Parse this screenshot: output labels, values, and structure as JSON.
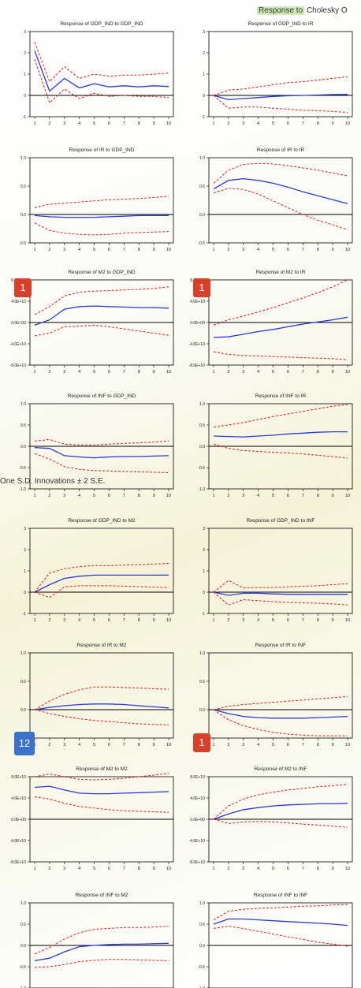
{
  "header": {
    "highlight": "Response to",
    "rest": "Cholesky O",
    "subtitle": "One S.D. Innovations ± 2 S.E."
  },
  "badges": [
    {
      "label": "1",
      "color": "#d8402a"
    },
    {
      "label": "1",
      "color": "#d8402a"
    },
    {
      "label": "12",
      "color": "#3a73c9"
    },
    {
      "label": "1",
      "color": "#d8402a"
    }
  ],
  "colors": {
    "response": "#2a3ad8",
    "bands": "#e02020",
    "zero": "#000000"
  },
  "chart_data": [
    {
      "type": "line",
      "title": "Response of GDP_IND to GDP_IND",
      "x": [
        1,
        2,
        3,
        4,
        5,
        6,
        7,
        8,
        9,
        10
      ],
      "ylim": [
        -1,
        3
      ],
      "yticks": [
        "-1",
        "0",
        "1",
        "2",
        "3"
      ],
      "series": [
        {
          "values": [
            2.1,
            0.2,
            0.8,
            0.35,
            0.55,
            0.4,
            0.45,
            0.4,
            0.45,
            0.42
          ]
        },
        {
          "values": [
            2.5,
            0.65,
            1.35,
            0.8,
            1.0,
            0.9,
            0.95,
            0.95,
            1.0,
            1.05
          ]
        },
        {
          "values": [
            1.7,
            -0.35,
            0.3,
            -0.15,
            0.1,
            -0.05,
            0.0,
            -0.05,
            -0.05,
            -0.1
          ]
        }
      ]
    },
    {
      "type": "line",
      "title": "Response of GDP_IND to IR",
      "x": [
        1,
        2,
        3,
        4,
        5,
        6,
        7,
        8,
        9,
        10
      ],
      "ylim": [
        -1,
        3
      ],
      "yticks": [
        "-1",
        "0",
        "1",
        "2",
        "3"
      ],
      "series": [
        {
          "values": [
            0.0,
            -0.2,
            -0.15,
            -0.1,
            -0.05,
            -0.02,
            0.0,
            0.02,
            0.04,
            0.05
          ]
        },
        {
          "values": [
            0.0,
            0.25,
            0.3,
            0.4,
            0.5,
            0.6,
            0.65,
            0.72,
            0.8,
            0.88
          ]
        },
        {
          "values": [
            0.0,
            -0.6,
            -0.55,
            -0.55,
            -0.6,
            -0.65,
            -0.7,
            -0.72,
            -0.75,
            -0.8
          ]
        }
      ]
    },
    {
      "type": "line",
      "title": "Response of IR to GDP_IND",
      "x": [
        1,
        2,
        3,
        4,
        5,
        6,
        7,
        8,
        9,
        10
      ],
      "ylim": [
        -0.5,
        1.0
      ],
      "yticks": [
        "-0.5",
        "0.0",
        "0.5",
        "1.0"
      ],
      "series": [
        {
          "values": [
            -0.02,
            -0.04,
            -0.05,
            -0.05,
            -0.05,
            -0.04,
            -0.03,
            -0.02,
            -0.02,
            -0.02
          ]
        },
        {
          "values": [
            0.12,
            0.18,
            0.2,
            0.22,
            0.24,
            0.26,
            0.27,
            0.28,
            0.3,
            0.32
          ]
        },
        {
          "values": [
            -0.15,
            -0.28,
            -0.33,
            -0.35,
            -0.36,
            -0.35,
            -0.33,
            -0.32,
            -0.31,
            -0.3
          ]
        }
      ]
    },
    {
      "type": "line",
      "title": "Response of IR to IR",
      "x": [
        1,
        2,
        3,
        4,
        5,
        6,
        7,
        8,
        9,
        10
      ],
      "ylim": [
        -0.5,
        1.0
      ],
      "yticks": [
        "-0.5",
        "0.0",
        "0.5",
        "1.0"
      ],
      "series": [
        {
          "values": [
            0.45,
            0.6,
            0.63,
            0.6,
            0.55,
            0.48,
            0.4,
            0.33,
            0.26,
            0.19
          ]
        },
        {
          "values": [
            0.55,
            0.78,
            0.88,
            0.9,
            0.89,
            0.86,
            0.82,
            0.78,
            0.73,
            0.68
          ]
        },
        {
          "values": [
            0.38,
            0.46,
            0.44,
            0.36,
            0.24,
            0.12,
            0.0,
            -0.1,
            -0.18,
            -0.27
          ]
        }
      ]
    },
    {
      "type": "line",
      "title": "Response of M2 to GDP_IND",
      "x": [
        1,
        2,
        3,
        4,
        5,
        6,
        7,
        8,
        9,
        10
      ],
      "ylim": [
        -80000000000,
        80000000000
      ],
      "yticks": [
        "-8.0E+10",
        "-4.0E+10",
        "0.0E+00",
        "4.0E+10",
        "8.0E+10"
      ],
      "series": [
        {
          "values": [
            -5000000000,
            5000000000,
            25000000000,
            30000000000,
            31000000000,
            30000000000,
            29000000000,
            28000000000,
            28000000000,
            27000000000
          ]
        },
        {
          "values": [
            15000000000,
            30000000000,
            50000000000,
            57000000000,
            59000000000,
            60000000000,
            61000000000,
            62000000000,
            64000000000,
            67000000000
          ]
        },
        {
          "values": [
            -25000000000,
            -20000000000,
            -8000000000,
            -7000000000,
            -5000000000,
            -8000000000,
            -12000000000,
            -16000000000,
            -20000000000,
            -24000000000
          ]
        }
      ]
    },
    {
      "type": "line",
      "title": "Response of M2 to IR",
      "x": [
        1,
        2,
        3,
        4,
        5,
        6,
        7,
        8,
        9,
        10
      ],
      "ylim": [
        -80000000000,
        80000000000
      ],
      "yticks": [
        "-8.0E+10",
        "-4.0E+10",
        "0.0E+00",
        "4.0E+10",
        "8.0E+10"
      ],
      "series": [
        {
          "values": [
            -28000000000,
            -27000000000,
            -22000000000,
            -17000000000,
            -13000000000,
            -8000000000,
            -3000000000,
            1000000000,
            5000000000,
            10000000000
          ]
        },
        {
          "values": [
            -5000000000,
            5000000000,
            12000000000,
            20000000000,
            28000000000,
            37000000000,
            46000000000,
            56000000000,
            67000000000,
            80000000000
          ]
        },
        {
          "values": [
            -55000000000,
            -60000000000,
            -62000000000,
            -63000000000,
            -64000000000,
            -65000000000,
            -66000000000,
            -67000000000,
            -68000000000,
            -70000000000
          ]
        }
      ]
    },
    {
      "type": "line",
      "title": "Response of INF to GDP_IND",
      "x": [
        1,
        2,
        3,
        4,
        5,
        6,
        7,
        8,
        9,
        10
      ],
      "ylim": [
        -1.0,
        1.0
      ],
      "yticks": [
        "-1.0",
        "-0.5",
        "0.0",
        "0.5",
        "1.0"
      ],
      "series": [
        {
          "values": [
            -0.03,
            -0.05,
            -0.22,
            -0.25,
            -0.27,
            -0.25,
            -0.24,
            -0.24,
            -0.23,
            -0.22
          ]
        },
        {
          "values": [
            0.12,
            0.16,
            0.05,
            0.03,
            0.03,
            0.05,
            0.07,
            0.08,
            0.1,
            0.12
          ]
        },
        {
          "values": [
            -0.17,
            -0.3,
            -0.48,
            -0.54,
            -0.57,
            -0.58,
            -0.59,
            -0.6,
            -0.61,
            -0.62
          ]
        }
      ]
    },
    {
      "type": "line",
      "title": "Response of INF to IR",
      "x": [
        1,
        2,
        3,
        4,
        5,
        6,
        7,
        8,
        9,
        10
      ],
      "ylim": [
        -1.0,
        1.0
      ],
      "yticks": [
        "-1.0",
        "-0.5",
        "0.0",
        "0.5",
        "1.0"
      ],
      "series": [
        {
          "values": [
            0.24,
            0.23,
            0.22,
            0.24,
            0.26,
            0.29,
            0.31,
            0.33,
            0.34,
            0.34
          ]
        },
        {
          "values": [
            0.45,
            0.5,
            0.56,
            0.63,
            0.7,
            0.76,
            0.82,
            0.88,
            0.94,
            0.98
          ]
        },
        {
          "values": [
            0.05,
            -0.05,
            -0.1,
            -0.12,
            -0.14,
            -0.16,
            -0.18,
            -0.21,
            -0.24,
            -0.28
          ]
        }
      ]
    },
    {
      "type": "line",
      "title": "Response of GDP_IND to M2",
      "x": [
        1,
        2,
        3,
        4,
        5,
        6,
        7,
        8,
        9,
        10
      ],
      "ylim": [
        -1,
        3
      ],
      "yticks": [
        "-1",
        "0",
        "1",
        "2",
        "3"
      ],
      "series": [
        {
          "values": [
            0.0,
            0.35,
            0.65,
            0.75,
            0.8,
            0.8,
            0.8,
            0.8,
            0.8,
            0.8
          ]
        },
        {
          "values": [
            0.0,
            0.9,
            1.1,
            1.2,
            1.25,
            1.25,
            1.27,
            1.3,
            1.32,
            1.35
          ]
        },
        {
          "values": [
            0.0,
            -0.25,
            0.25,
            0.3,
            0.3,
            0.3,
            0.28,
            0.26,
            0.24,
            0.22
          ]
        }
      ]
    },
    {
      "type": "line",
      "title": "Response of GDP_IND to INF",
      "x": [
        1,
        2,
        3,
        4,
        5,
        6,
        7,
        8,
        9,
        10
      ],
      "ylim": [
        -1,
        3
      ],
      "yticks": [
        "-1",
        "0",
        "1",
        "2",
        "3"
      ],
      "series": [
        {
          "values": [
            0.0,
            -0.15,
            -0.05,
            -0.05,
            -0.08,
            -0.1,
            -0.1,
            -0.1,
            -0.1,
            -0.1
          ]
        },
        {
          "values": [
            0.0,
            0.55,
            0.2,
            0.22,
            0.22,
            0.25,
            0.28,
            0.3,
            0.35,
            0.4
          ]
        },
        {
          "values": [
            0.0,
            -0.6,
            -0.35,
            -0.4,
            -0.45,
            -0.48,
            -0.5,
            -0.52,
            -0.55,
            -0.6
          ]
        }
      ]
    },
    {
      "type": "line",
      "title": "Response of IR to M2",
      "x": [
        1,
        2,
        3,
        4,
        5,
        6,
        7,
        8,
        9,
        10
      ],
      "ylim": [
        -0.5,
        1.0
      ],
      "yticks": [
        "-0.5",
        "0.0",
        "0.5",
        "1.0"
      ],
      "series": [
        {
          "values": [
            0.0,
            0.04,
            0.07,
            0.09,
            0.1,
            0.1,
            0.09,
            0.07,
            0.05,
            0.03
          ]
        },
        {
          "values": [
            0.0,
            0.15,
            0.27,
            0.35,
            0.4,
            0.4,
            0.39,
            0.38,
            0.37,
            0.36
          ]
        },
        {
          "values": [
            0.0,
            -0.07,
            -0.12,
            -0.16,
            -0.19,
            -0.21,
            -0.23,
            -0.25,
            -0.26,
            -0.27
          ]
        }
      ]
    },
    {
      "type": "line",
      "title": "Response of IR to INF",
      "x": [
        1,
        2,
        3,
        4,
        5,
        6,
        7,
        8,
        9,
        10
      ],
      "ylim": [
        -0.5,
        1.0
      ],
      "yticks": [
        "-0.5",
        "0.0",
        "0.5",
        "1.0"
      ],
      "series": [
        {
          "values": [
            0.0,
            -0.07,
            -0.12,
            -0.14,
            -0.15,
            -0.15,
            -0.15,
            -0.14,
            -0.13,
            -0.12
          ]
        },
        {
          "values": [
            0.0,
            0.06,
            0.09,
            0.11,
            0.13,
            0.15,
            0.17,
            0.19,
            0.21,
            0.23
          ]
        },
        {
          "values": [
            0.0,
            -0.18,
            -0.28,
            -0.35,
            -0.4,
            -0.43,
            -0.45,
            -0.46,
            -0.46,
            -0.46
          ]
        }
      ]
    },
    {
      "type": "line",
      "title": "Response of M2 to M2",
      "x": [
        1,
        2,
        3,
        4,
        5,
        6,
        7,
        8,
        9,
        10
      ],
      "ylim": [
        -80000000000,
        80000000000
      ],
      "yticks": [
        "-8.0E+10",
        "-4.0E+10",
        "0.0E+00",
        "4.0E+10",
        "8.0E+10"
      ],
      "series": [
        {
          "values": [
            60000000000,
            62000000000,
            55000000000,
            49000000000,
            48000000000,
            48000000000,
            49000000000,
            50000000000,
            51000000000,
            52000000000
          ]
        },
        {
          "values": [
            80000000000,
            85000000000,
            80000000000,
            75000000000,
            74000000000,
            75000000000,
            77000000000,
            80000000000,
            83000000000,
            86000000000
          ]
        },
        {
          "values": [
            42000000000,
            38000000000,
            30000000000,
            24000000000,
            21000000000,
            18000000000,
            16000000000,
            15000000000,
            14000000000,
            13000000000
          ]
        }
      ]
    },
    {
      "type": "line",
      "title": "Response of M2 to INF",
      "x": [
        1,
        2,
        3,
        4,
        5,
        6,
        7,
        8,
        9,
        10
      ],
      "ylim": [
        -80000000000,
        80000000000
      ],
      "yticks": [
        "-8.0E+10",
        "-4.0E+10",
        "0.0E+00",
        "4.0E+10",
        "8.0E+10"
      ],
      "series": [
        {
          "values": [
            0,
            10000000000,
            18000000000,
            22000000000,
            25000000000,
            27000000000,
            28000000000,
            29000000000,
            29000000000,
            30000000000
          ]
        },
        {
          "values": [
            0,
            25000000000,
            38000000000,
            46000000000,
            51000000000,
            55000000000,
            58000000000,
            61000000000,
            63000000000,
            66000000000
          ]
        },
        {
          "values": [
            0,
            -8000000000,
            -5000000000,
            -4000000000,
            -5000000000,
            -7000000000,
            -9000000000,
            -11000000000,
            -13000000000,
            -15000000000
          ]
        }
      ]
    },
    {
      "type": "line",
      "title": "Response of INF to M2",
      "x": [
        1,
        2,
        3,
        4,
        5,
        6,
        7,
        8,
        9,
        10
      ],
      "ylim": [
        -1.0,
        1.0
      ],
      "yticks": [
        "-1.0",
        "-0.5",
        "0.0",
        "0.5",
        "1.0"
      ],
      "series": [
        {
          "values": [
            -0.36,
            -0.3,
            -0.15,
            -0.03,
            0.0,
            0.02,
            0.03,
            0.03,
            0.04,
            0.05
          ]
        },
        {
          "values": [
            -0.2,
            -0.05,
            0.15,
            0.3,
            0.38,
            0.4,
            0.42,
            0.42,
            0.43,
            0.45
          ]
        },
        {
          "values": [
            -0.52,
            -0.5,
            -0.45,
            -0.38,
            -0.35,
            -0.33,
            -0.33,
            -0.34,
            -0.35,
            -0.36
          ]
        }
      ]
    },
    {
      "type": "line",
      "title": "Response of INF to INF",
      "x": [
        1,
        2,
        3,
        4,
        5,
        6,
        7,
        8,
        9,
        10
      ],
      "ylim": [
        -1.0,
        1.0
      ],
      "yticks": [
        "-1.0",
        "-0.5",
        "0.0",
        "0.5",
        "1.0"
      ],
      "series": [
        {
          "values": [
            0.5,
            0.62,
            0.62,
            0.6,
            0.58,
            0.56,
            0.54,
            0.52,
            0.5,
            0.47
          ]
        },
        {
          "values": [
            0.6,
            0.8,
            0.85,
            0.87,
            0.88,
            0.9,
            0.92,
            0.93,
            0.95,
            0.96
          ]
        },
        {
          "values": [
            0.4,
            0.45,
            0.4,
            0.33,
            0.27,
            0.2,
            0.14,
            0.08,
            0.03,
            -0.02
          ]
        }
      ]
    }
  ]
}
